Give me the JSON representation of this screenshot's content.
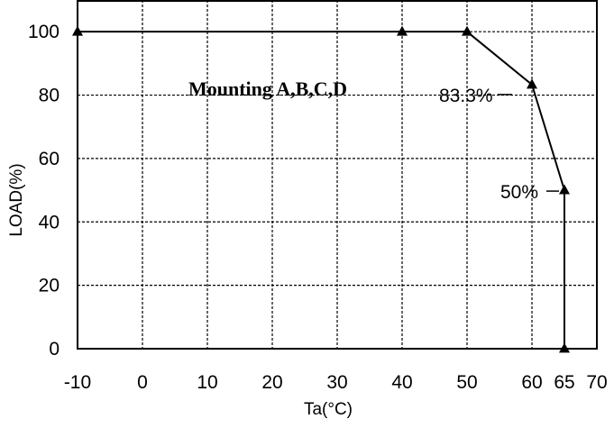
{
  "chart_data": {
    "type": "line",
    "xlabel": "Ta(°C)",
    "ylabel": "LOAD(%)",
    "title": "",
    "xlim": [
      -10,
      70
    ],
    "ylim": [
      0,
      110
    ],
    "xticks": [
      -10,
      0,
      10,
      20,
      30,
      40,
      50,
      60,
      65,
      70
    ],
    "xtick_labels": [
      "-10",
      "0",
      "10",
      "20",
      "30",
      "40",
      "50",
      "60",
      "65",
      "70"
    ],
    "yticks": [
      0,
      20,
      40,
      60,
      80,
      100
    ],
    "ytick_labels": [
      "0",
      "20",
      "40",
      "60",
      "80",
      "100"
    ],
    "grid": true,
    "series": [
      {
        "x": [
          -10,
          40,
          50,
          60,
          65,
          65
        ],
        "y": [
          100,
          100,
          100,
          83.3,
          50,
          0
        ],
        "marker": "triangle",
        "color": "#000000"
      }
    ],
    "annotations": [
      {
        "text": "Mounting A,B,C,D"
      },
      {
        "text": "83.3%",
        "x": 60,
        "y": 83.3
      },
      {
        "text": "50%",
        "x": 65,
        "y": 50
      }
    ]
  }
}
